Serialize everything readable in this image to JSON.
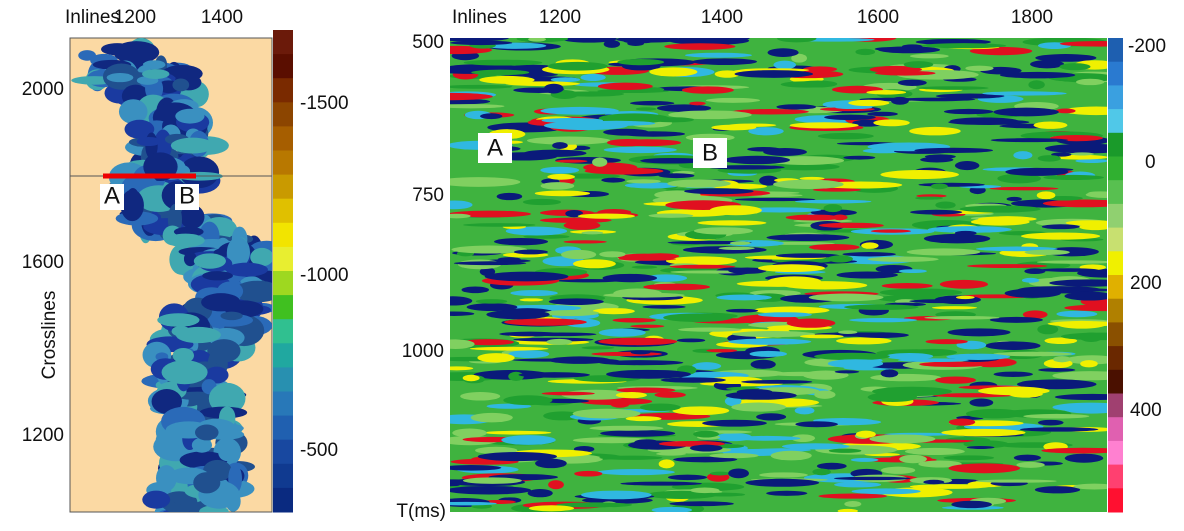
{
  "map_panel": {
    "x_axis": {
      "label": "Inlines",
      "ticks": [
        1200,
        1400
      ]
    },
    "y_axis": {
      "label": "Crosslines",
      "ticks": [
        2000,
        1600,
        1200
      ]
    },
    "colorbar": {
      "ticks": [
        -1500,
        -1000,
        -500
      ]
    },
    "annotations": [
      "A",
      "B"
    ]
  },
  "section_panel": {
    "x_axis": {
      "label": "Inlines",
      "ticks": [
        1200,
        1400,
        1600,
        1800
      ]
    },
    "y_axis": {
      "label": "T(ms)",
      "ticks": [
        500,
        750,
        1000
      ]
    },
    "colorbar": {
      "ticks": [
        -200,
        0,
        200,
        400
      ]
    },
    "annotations": [
      "A",
      "B"
    ]
  }
}
